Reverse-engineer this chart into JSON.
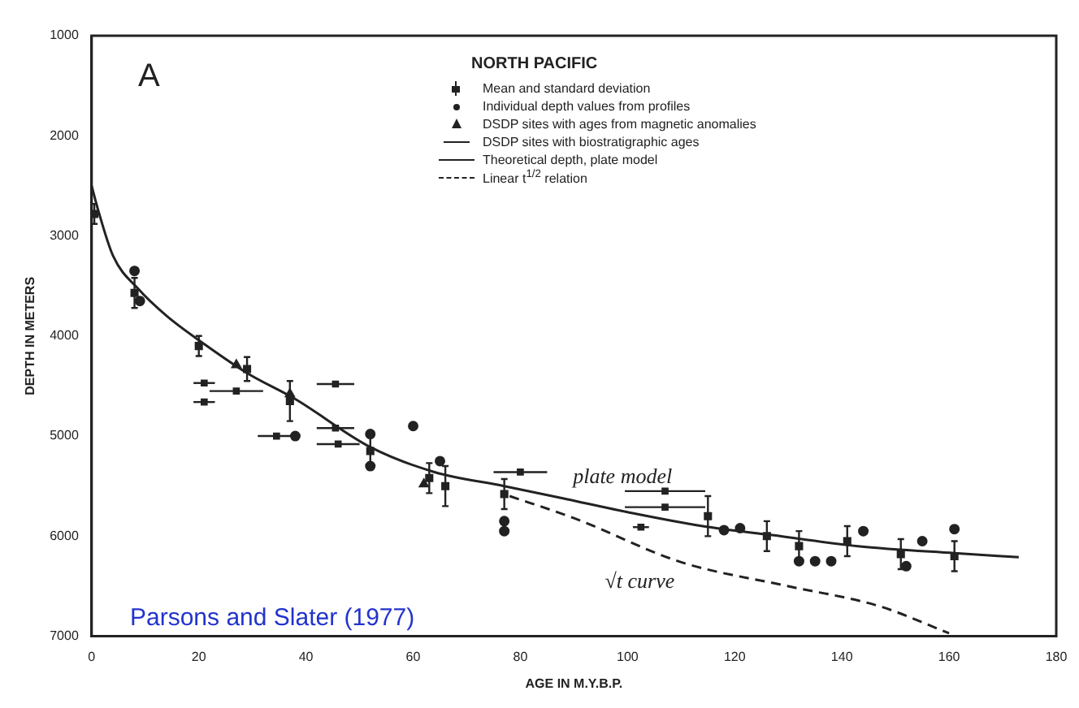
{
  "chart_data": {
    "type": "scatter",
    "legend_title": "NORTH PACIFIC",
    "xlabel": "AGE IN M.Y.B.P.",
    "ylabel": "DEPTH IN METERS",
    "xlim": [
      0,
      180
    ],
    "xticks": [
      0,
      20,
      40,
      60,
      80,
      100,
      120,
      140,
      160,
      180
    ],
    "ylim": [
      7000,
      1000
    ],
    "yticks": [
      1000,
      2000,
      3000,
      4000,
      5000,
      6000,
      7000
    ],
    "grid": false,
    "legend": "top right",
    "series": [
      {
        "name": "Mean and standard deviation",
        "type": "scatter",
        "marker": "square",
        "color": "#222222",
        "x": [
          0.5,
          8,
          20,
          29,
          37,
          52,
          63,
          66,
          77,
          115,
          126,
          132,
          141,
          151,
          161
        ],
        "values": [
          2780,
          3570,
          4100,
          4330,
          4650,
          5150,
          5420,
          5500,
          5580,
          5800,
          6000,
          6100,
          6050,
          6180,
          6200
        ],
        "errors": [
          100,
          150,
          100,
          120,
          200,
          150,
          150,
          200,
          150,
          200,
          150,
          150,
          150,
          150,
          150
        ]
      },
      {
        "name": "Individual depth values from profiles",
        "type": "scatter",
        "marker": "circle",
        "color": "#222222",
        "x": [
          8,
          9,
          38,
          52,
          52,
          60,
          65,
          77,
          77,
          118,
          121,
          132,
          135,
          138,
          144,
          152,
          155,
          161
        ],
        "values": [
          3350,
          3650,
          5000,
          4980,
          5300,
          4900,
          5250,
          5850,
          5950,
          5940,
          5920,
          6250,
          6250,
          6250,
          5950,
          6300,
          6050,
          5930
        ]
      },
      {
        "name": "DSDP sites with ages from magnetic anomalies",
        "type": "scatter",
        "marker": "triangle",
        "color": "#222222",
        "x": [
          27,
          37,
          62
        ],
        "values": [
          4290,
          4580,
          5480
        ]
      },
      {
        "name": "DSDP sites with biostratigraphic ages",
        "type": "scatter",
        "marker": "square",
        "color": "#222222",
        "x": [
          21,
          27,
          45.5,
          21,
          34.5,
          45.5,
          46,
          80,
          107,
          107,
          102.5
        ],
        "values": [
          4470,
          4550,
          4480,
          4660,
          5000,
          4920,
          5080,
          5360,
          5550,
          5710,
          5910
        ],
        "xerrors": [
          2,
          5,
          3.5,
          2,
          3.5,
          3.5,
          4,
          5,
          7.5,
          7.5,
          1.5
        ]
      },
      {
        "name": "Theoretical depth, plate model",
        "type": "line",
        "marker": "none",
        "line_style": "solid",
        "color": "#222222",
        "x": [
          0,
          1.2,
          4,
          8.7,
          14,
          21,
          29,
          38,
          52,
          64,
          77,
          88.6,
          100,
          114,
          127,
          143,
          161,
          173
        ],
        "values": [
          2500,
          2740,
          3200,
          3530,
          3800,
          4080,
          4370,
          4630,
          5110,
          5360,
          5500,
          5630,
          5760,
          5900,
          5990,
          6100,
          6170,
          6210
        ]
      },
      {
        "name": "Linear t$^{1/2}$ relation",
        "type": "line",
        "marker": "none",
        "line_style": "dashed",
        "color": "#222222",
        "x": [
          78,
          90,
          110,
          130,
          147,
          160
        ],
        "values": [
          5600,
          5820,
          6260,
          6500,
          6700,
          6970
        ]
      }
    ],
    "annotations": [
      "A",
      "Parsons and Slater (1977)",
      {
        "text": "plate model",
        "x": 88.6,
        "y": 5630
      },
      {
        "text": "√t curve",
        "x": 110,
        "y": 6260
      }
    ]
  }
}
